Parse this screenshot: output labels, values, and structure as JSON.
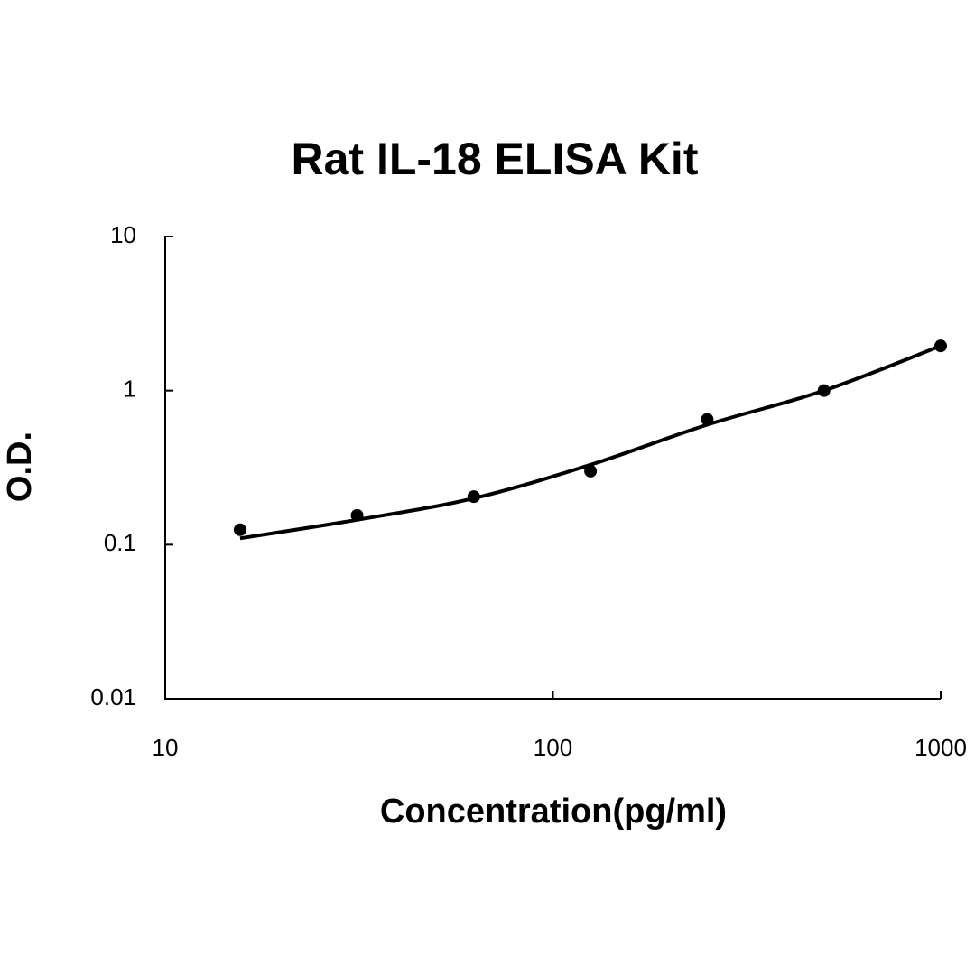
{
  "chart_data": {
    "type": "scatter",
    "title": "Rat IL-18 ELISA Kit",
    "x_label": "Concentration(pg/ml)",
    "y_label": "O.D.",
    "x_scale": "log",
    "y_scale": "log",
    "xlim": [
      10,
      1000
    ],
    "xticks": [
      10,
      100,
      1000
    ],
    "ylim": [
      0.01,
      10
    ],
    "yticks": [
      0.01,
      0.1,
      1,
      10
    ],
    "series": [
      {
        "type": "scatter",
        "color": "#000000",
        "x": [
          15.6,
          31.25,
          62.5,
          125,
          250,
          500,
          1000
        ],
        "values": [
          0.125,
          0.155,
          0.205,
          0.3,
          0.65,
          1.0,
          1.95
        ]
      },
      {
        "type": "line",
        "color": "#000000",
        "x": [
          15.6,
          31.25,
          62.5,
          125,
          250,
          500,
          1000
        ],
        "values": [
          0.11,
          0.145,
          0.2,
          0.33,
          0.6,
          1.0,
          1.95
        ]
      }
    ]
  }
}
